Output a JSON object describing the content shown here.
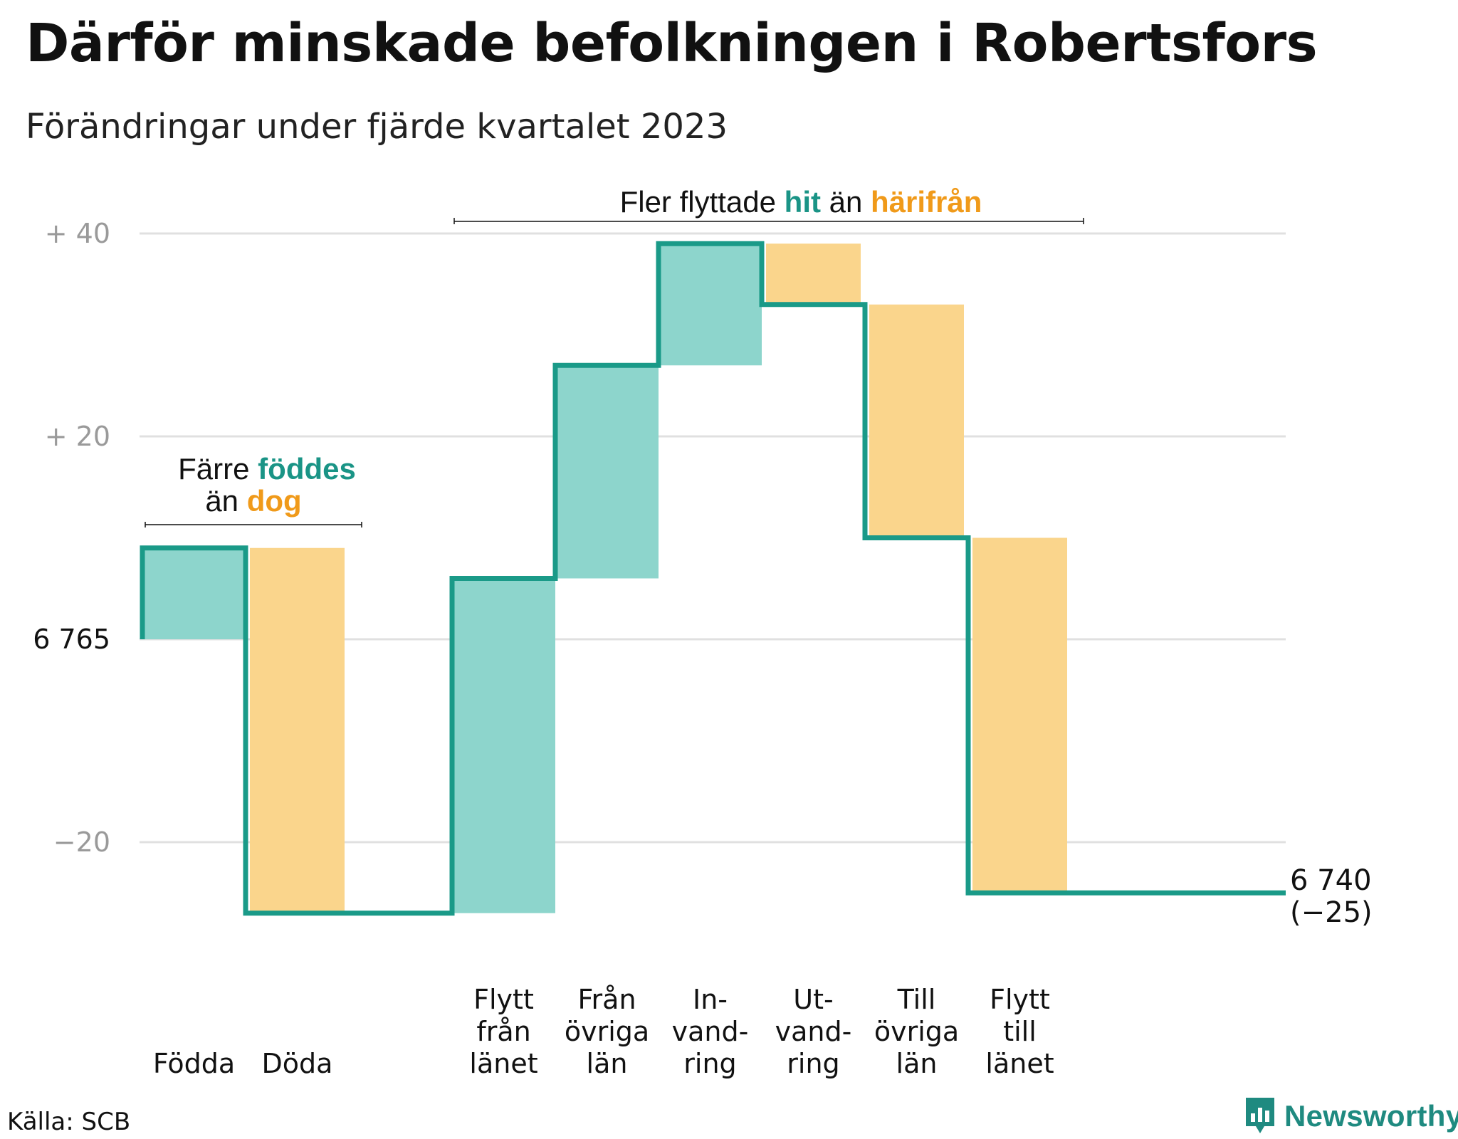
{
  "title": "Därför minskade befolkningen i Robertsfors",
  "subtitle": "Förändringar under fjärde kvartalet 2023",
  "source": "Källa: SCB",
  "brand": "Newsworthy",
  "colors": {
    "increase": "#8dd5cc",
    "decrease": "#fad58c",
    "line": "#1a9a88",
    "teal_text": "#1a9486",
    "orange_text": "#f09a1a",
    "grid": "#e0e0e0",
    "tick": "#9a9a9a"
  },
  "annotations": {
    "births": {
      "line1_pre": "Färre ",
      "line1_hi": "föddes",
      "line2_pre": "än ",
      "line2_hi": "dog"
    },
    "moves": {
      "pre": "Fler flyttade ",
      "hi1": "hit",
      "mid": " än ",
      "hi2": "härifrån"
    }
  },
  "end_label": {
    "value": "6 740",
    "change": "(−25)"
  },
  "chart_data": {
    "type": "waterfall",
    "start": 6765,
    "start_label": "6 765",
    "end": 6740,
    "y_ticks": [
      {
        "value": 40,
        "label": "+ 40"
      },
      {
        "value": 20,
        "label": "+ 20"
      },
      {
        "value": 0,
        "label": "6 765"
      },
      {
        "value": -20,
        "label": "−20"
      }
    ],
    "ylim": [
      -20,
      40
    ],
    "steps": [
      {
        "label": [
          "Födda"
        ],
        "value": 9
      },
      {
        "label": [
          "Döda"
        ],
        "value": -36
      },
      {
        "label": [],
        "value": 0
      },
      {
        "label": [
          "Flytt",
          "från",
          "länet"
        ],
        "value": 33
      },
      {
        "label": [
          "Från",
          "övriga",
          "län"
        ],
        "value": 21
      },
      {
        "label": [
          "In-",
          "vand-",
          "ring"
        ],
        "value": 12
      },
      {
        "label": [
          "Ut-",
          "vand-",
          "ring"
        ],
        "value": -6
      },
      {
        "label": [
          "Till",
          "övriga",
          "län"
        ],
        "value": -23
      },
      {
        "label": [
          "Flytt",
          "till",
          "länet"
        ],
        "value": -35
      }
    ]
  }
}
